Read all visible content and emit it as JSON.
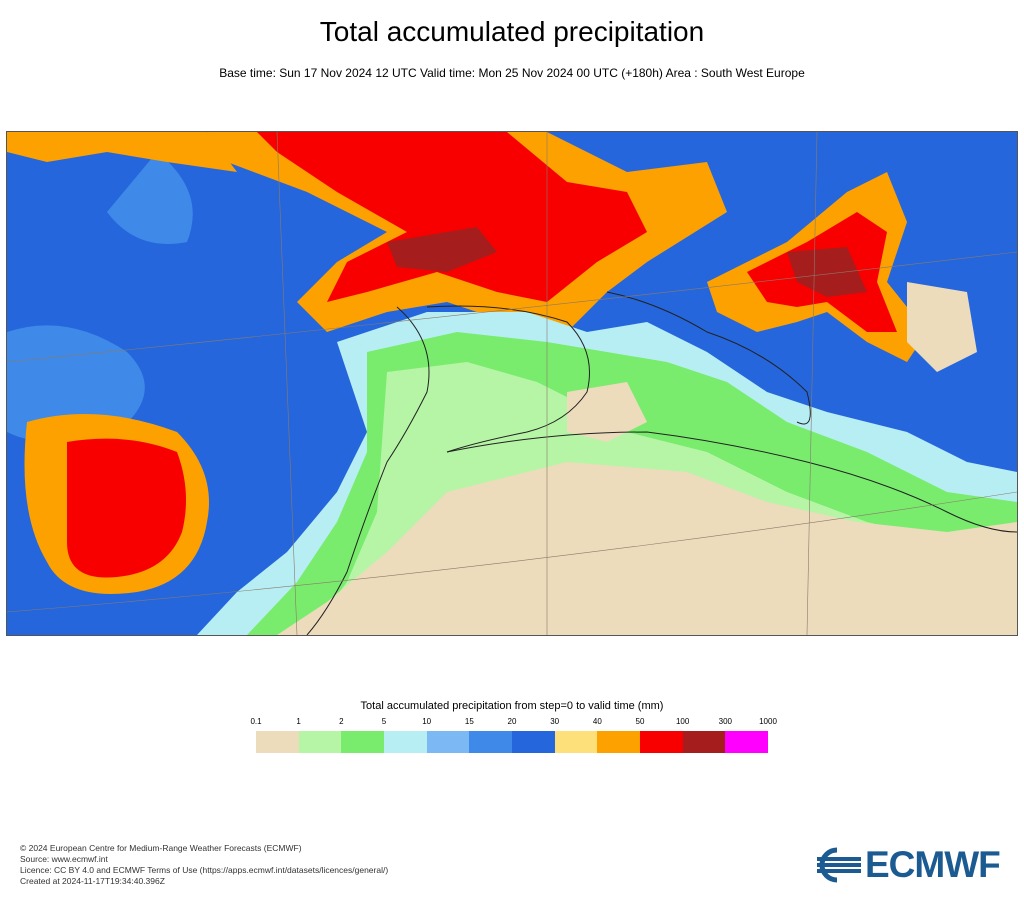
{
  "title": "Total accumulated precipitation",
  "subtitle": "Base time: Sun 17 Nov 2024 12 UTC Valid time: Mon 25 Nov 2024 00 UTC (+180h) Area : South West Europe",
  "map": {
    "colors": {
      "ocean": "#2566dd",
      "land_dry": "#ecdcbc",
      "blue_light": "#b7eef4",
      "blue_mid": "#7bb8f4",
      "green_light": "#b5f5a5",
      "green": "#79ec6e",
      "yellow": "#fde07a",
      "orange": "#fda100",
      "red": "#f80000",
      "darkred": "#a51d1d",
      "coast": "#222222"
    }
  },
  "legend": {
    "title": "Total accumulated precipitation from step=0 to valid time (mm)",
    "ticks": [
      "0.1",
      "1",
      "2",
      "5",
      "10",
      "15",
      "20",
      "30",
      "40",
      "50",
      "100",
      "300",
      "1000"
    ],
    "colors": [
      "#ecdcbc",
      "#b5f5a5",
      "#79ec6e",
      "#b7eef4",
      "#7bb8f4",
      "#3f8ae8",
      "#2566dd",
      "#fde07a",
      "#fda100",
      "#f80000",
      "#a51d1d",
      "#ff00ff"
    ]
  },
  "footer": {
    "copyright": "© 2024 European Centre for Medium-Range Weather Forecasts (ECMWF)",
    "source": "Source: www.ecmwf.int",
    "licence": "Licence: CC BY 4.0 and ECMWF Terms of Use (https://apps.ecmwf.int/datasets/licences/general/)",
    "created": "Created at 2024-11-17T19:34:40.396Z"
  },
  "logo": {
    "text": "ECMWF",
    "color": "#1b5b91"
  }
}
